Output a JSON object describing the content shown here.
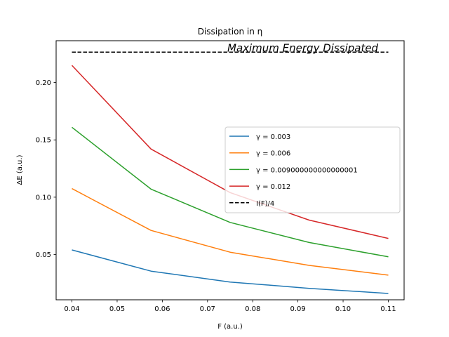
{
  "chart_data": {
    "type": "line",
    "title": "Dissipation in η",
    "xlabel": "F (a.u.)",
    "ylabel": "ΔE (a.u.)",
    "xlim": [
      0.0365,
      0.1135
    ],
    "ylim": [
      0.0105,
      0.2365
    ],
    "x": [
      0.04,
      0.0575,
      0.075,
      0.0925,
      0.11
    ],
    "xticks": [
      0.04,
      0.05,
      0.06,
      0.07,
      0.08,
      0.09,
      0.1,
      0.11
    ],
    "xtick_labels": [
      "0.04",
      "0.05",
      "0.06",
      "0.07",
      "0.08",
      "0.09",
      "0.10",
      "0.11"
    ],
    "yticks": [
      0.05,
      0.1,
      0.15,
      0.2
    ],
    "ytick_labels": [
      "0.05",
      "0.10",
      "0.15",
      "0.20"
    ],
    "series": [
      {
        "name": "γ = 0.003",
        "color": "#1f77b4",
        "style": "solid",
        "values": [
          0.054,
          0.0355,
          0.026,
          0.0205,
          0.016
        ]
      },
      {
        "name": "γ = 0.006",
        "color": "#ff7f0e",
        "style": "solid",
        "values": [
          0.1075,
          0.071,
          0.052,
          0.0405,
          0.032
        ]
      },
      {
        "name": "γ = 0.009000000000000001",
        "color": "#2ca02c",
        "style": "solid",
        "values": [
          0.161,
          0.107,
          0.078,
          0.0605,
          0.048
        ]
      },
      {
        "name": "γ = 0.012",
        "color": "#d62728",
        "style": "solid",
        "values": [
          0.215,
          0.142,
          0.104,
          0.08,
          0.064
        ]
      },
      {
        "name": "I(F)/4",
        "color": "#000000",
        "style": "dashed",
        "values": [
          0.2265,
          0.2265,
          0.2265,
          0.2265,
          0.2265
        ]
      }
    ],
    "annotations": [
      {
        "text": "Maximum Energy Dissipated",
        "x": 0.075,
        "y": 0.2265
      }
    ],
    "grid": false,
    "legend_position": "center-right"
  }
}
